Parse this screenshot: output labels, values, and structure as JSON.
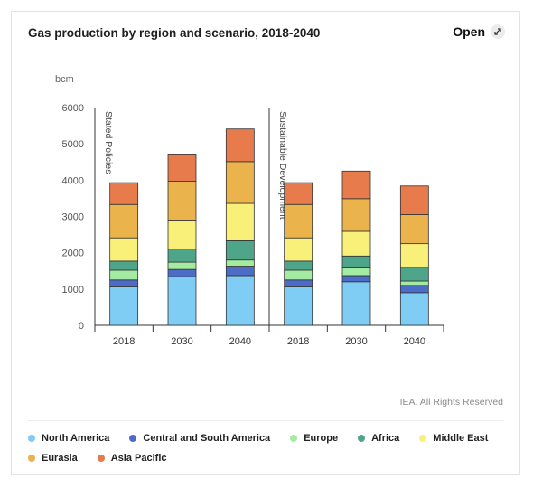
{
  "header": {
    "title": "Gas production by region and scenario, 2018-2040",
    "open_label": "Open",
    "open_icon": "expand-icon"
  },
  "credit": "IEA. All Rights Reserved",
  "chart_data": {
    "type": "bar",
    "stacked": true,
    "title": "Gas production by region and scenario, 2018-2040",
    "ylabel": "bcm",
    "ylim": [
      0,
      6000
    ],
    "yticks": [
      0,
      1000,
      2000,
      3000,
      4000,
      5000,
      6000
    ],
    "groups": [
      {
        "name": "Stated Policies",
        "categories": [
          "2018",
          "2030",
          "2040"
        ]
      },
      {
        "name": "Sustainable Development",
        "categories": [
          "2018",
          "2030",
          "2040"
        ]
      }
    ],
    "categories": [
      "2018",
      "2030",
      "2040",
      "2018",
      "2030",
      "2040"
    ],
    "series": [
      {
        "name": "North America",
        "color": "#7fcdf5",
        "values": [
          1060,
          1340,
          1370,
          1060,
          1200,
          900
        ]
      },
      {
        "name": "Central and South America",
        "color": "#4d6cc7",
        "values": [
          190,
          200,
          260,
          190,
          170,
          200
        ]
      },
      {
        "name": "Europe",
        "color": "#a3eba0",
        "values": [
          270,
          200,
          170,
          270,
          210,
          120
        ]
      },
      {
        "name": "Africa",
        "color": "#4fa58a",
        "values": [
          250,
          360,
          530,
          250,
          330,
          380
        ]
      },
      {
        "name": "Middle East",
        "color": "#f8f078",
        "values": [
          640,
          800,
          1030,
          640,
          680,
          650
        ]
      },
      {
        "name": "Eurasia",
        "color": "#eab34b",
        "values": [
          920,
          1070,
          1150,
          920,
          900,
          800
        ]
      },
      {
        "name": "Asia Pacific",
        "color": "#e77b4c",
        "values": [
          600,
          750,
          900,
          600,
          760,
          790
        ]
      }
    ],
    "grid": false,
    "legend_position": "bottom"
  }
}
